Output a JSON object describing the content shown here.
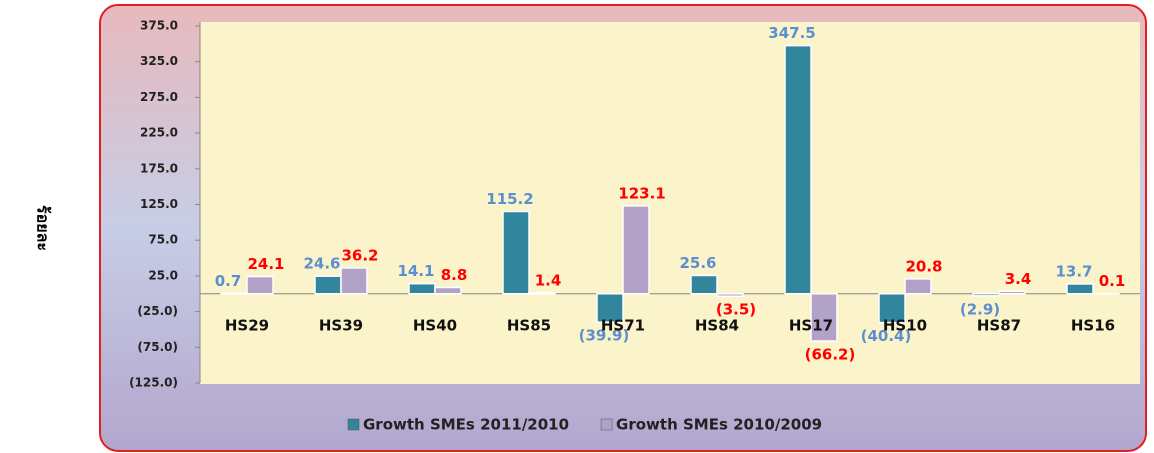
{
  "chart_data": {
    "type": "bar",
    "y_label": "ร้อยละ",
    "categories": [
      "HS29",
      "HS39",
      "HS40",
      "HS85",
      "HS71",
      "HS84",
      "HS17",
      "HS10",
      "HS87",
      "HS16"
    ],
    "series": [
      {
        "name": "Growth SMEs 2011/2010",
        "color": "#31859c",
        "label_color": "#5b8fd0",
        "values": [
          0.7,
          24.6,
          14.1,
          115.2,
          -39.9,
          25.6,
          347.5,
          -40.4,
          -2.9,
          13.7
        ],
        "value_labels": [
          "0.7",
          "24.6",
          "14.1",
          "115.2",
          "(39.9)",
          "25.6",
          "347.5",
          "(40.4)",
          "(2.9)",
          "13.7"
        ]
      },
      {
        "name": "Growth SMEs 2010/2009",
        "color": "#b3a2c7",
        "label_color": "#ff0000",
        "values": [
          24.1,
          36.2,
          8.8,
          1.4,
          123.1,
          -3.5,
          -66.2,
          20.8,
          3.4,
          0.1
        ],
        "value_labels": [
          "24.1",
          "36.2",
          "8.8",
          "1.4",
          "123.1",
          "(3.5)",
          "(66.2)",
          "20.8",
          "3.4",
          "0.1"
        ]
      }
    ],
    "ylim": [
      -125,
      375
    ],
    "yticks": [
      {
        "value": -125,
        "label": "(125.0)"
      },
      {
        "value": -75,
        "label": "(75.0)"
      },
      {
        "value": -25,
        "label": "(25.0)"
      },
      {
        "value": 25,
        "label": "25.0"
      },
      {
        "value": 75,
        "label": "75.0"
      },
      {
        "value": 125,
        "label": "125.0"
      },
      {
        "value": 175,
        "label": "175.0"
      },
      {
        "value": 225,
        "label": "225.0"
      },
      {
        "value": 275,
        "label": "275.0"
      },
      {
        "value": 325,
        "label": "325.0"
      },
      {
        "value": 375,
        "label": "375.0"
      }
    ],
    "grid": false,
    "legend": "bottom"
  }
}
